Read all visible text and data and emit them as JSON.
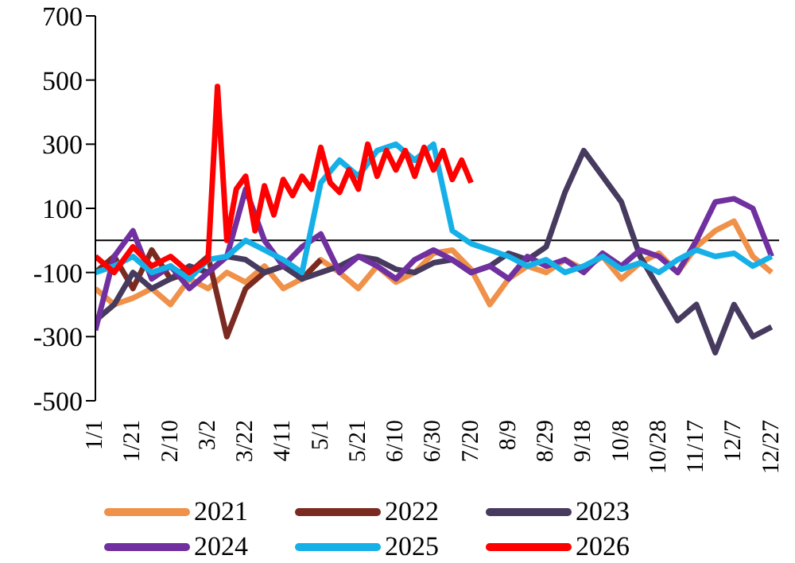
{
  "chart_data": {
    "type": "line",
    "x": [
      "--01-01",
      "--01-11",
      "--01-21",
      "--01-31",
      "--02-10",
      "--02-20",
      "--03-02",
      "--03-12",
      "--03-22",
      "--04-01",
      "--04-11",
      "--04-21",
      "--05-01",
      "--05-11",
      "--05-21",
      "--05-31",
      "--06-10",
      "--06-20",
      "--06-30",
      "--07-10",
      "--07-20",
      "--07-30",
      "--08-09",
      "--08-19",
      "--08-29",
      "--09-08",
      "--09-18",
      "--09-28",
      "--10-08",
      "--10-18",
      "--10-28",
      "--11-07",
      "--11-17",
      "--11-27",
      "--12-07",
      "--12-17",
      "--12-27"
    ],
    "series": [
      {
        "name": "2021",
        "color": "#f0914a",
        "values": [
          -150,
          -200,
          -180,
          -150,
          -200,
          -120,
          -150,
          -100,
          -130,
          -80,
          -150,
          -120,
          -60,
          -100,
          -150,
          -80,
          -130,
          -100,
          -40,
          -30,
          -90,
          -200,
          -120,
          -80,
          -100,
          -60,
          -90,
          -50,
          -120,
          -70,
          -40,
          -100,
          -20,
          30,
          60,
          -50,
          -100
        ]
      },
      {
        "name": "2022",
        "color": "#7b2a22",
        "values": [
          -100,
          -50,
          -150,
          -30,
          -120,
          -100,
          -50,
          -300,
          -150,
          -100,
          -80,
          -120,
          -60,
          null,
          null,
          null,
          null,
          null,
          null,
          null,
          null,
          null,
          null,
          null,
          null,
          null,
          null,
          null,
          null,
          null,
          null,
          null,
          null,
          null,
          null,
          null,
          null
        ]
      },
      {
        "name": "2023",
        "color": "#463a5e",
        "values": [
          -250,
          -200,
          -100,
          -150,
          -120,
          -80,
          -100,
          -50,
          -60,
          -100,
          -80,
          -120,
          -100,
          -80,
          -50,
          -60,
          -90,
          -100,
          -70,
          -60,
          -100,
          -80,
          -40,
          -60,
          -20,
          150,
          280,
          200,
          120,
          -50,
          -150,
          -250,
          -200,
          -350,
          -200,
          -300,
          -270
        ]
      },
      {
        "name": "2024",
        "color": "#7030a0",
        "values": [
          -280,
          -50,
          30,
          -120,
          -80,
          -150,
          -100,
          -50,
          160,
          0,
          -80,
          -20,
          20,
          -100,
          -50,
          -80,
          -120,
          -60,
          -30,
          -60,
          -100,
          -80,
          -120,
          -50,
          -80,
          -60,
          -100,
          -40,
          -80,
          -30,
          -50,
          -100,
          0,
          120,
          130,
          100,
          -50
        ]
      },
      {
        "name": "2025",
        "color": "#16b0e8",
        "values": [
          -100,
          -80,
          -50,
          -100,
          -80,
          -120,
          -60,
          -50,
          0,
          -30,
          -60,
          -100,
          180,
          250,
          200,
          280,
          300,
          250,
          300,
          30,
          -10,
          -30,
          -50,
          -80,
          -60,
          -100,
          -80,
          -50,
          -90,
          -70,
          -100,
          -60,
          -30,
          -50,
          -40,
          -80,
          -50
        ]
      },
      {
        "name": "2026",
        "color": "#ff0000",
        "x": [
          "--01-01",
          "--01-11",
          "--01-21",
          "--01-31",
          "--02-10",
          "--02-20",
          "--03-02",
          "--03-07",
          "--03-12",
          "--03-17",
          "--03-22",
          "--03-27",
          "--04-01",
          "--04-06",
          "--04-11",
          "--04-16",
          "--04-21",
          "--04-26",
          "--05-01",
          "--05-06",
          "--05-11",
          "--05-16",
          "--05-21",
          "--05-26",
          "--05-31",
          "--06-05",
          "--06-10",
          "--06-15",
          "--06-20",
          "--06-25",
          "--06-30",
          "--07-05",
          "--07-10",
          "--07-15",
          "--07-20"
        ],
        "values": [
          -50,
          -100,
          -20,
          -80,
          -50,
          -100,
          -60,
          480,
          0,
          160,
          200,
          30,
          170,
          80,
          190,
          140,
          200,
          160,
          290,
          180,
          150,
          220,
          160,
          300,
          200,
          280,
          220,
          280,
          200,
          290,
          220,
          280,
          190,
          250,
          180
        ]
      }
    ],
    "xlim": [
      "--01-01",
      "--12-31"
    ],
    "xticks": [
      {
        "value": "--01-01",
        "label": "1/1"
      },
      {
        "value": "--01-21",
        "label": "1/21"
      },
      {
        "value": "--02-10",
        "label": "2/10"
      },
      {
        "value": "--03-02",
        "label": "3/2"
      },
      {
        "value": "--03-22",
        "label": "3/22"
      },
      {
        "value": "--04-11",
        "label": "4/11"
      },
      {
        "value": "--05-01",
        "label": "5/1"
      },
      {
        "value": "--05-21",
        "label": "5/21"
      },
      {
        "value": "--06-10",
        "label": "6/10"
      },
      {
        "value": "--06-30",
        "label": "6/30"
      },
      {
        "value": "--07-20",
        "label": "7/20"
      },
      {
        "value": "--08-09",
        "label": "8/9"
      },
      {
        "value": "--08-29",
        "label": "8/29"
      },
      {
        "value": "--09-18",
        "label": "9/18"
      },
      {
        "value": "--10-08",
        "label": "10/8"
      },
      {
        "value": "--10-28",
        "label": "10/28"
      },
      {
        "value": "--11-17",
        "label": "11/17"
      },
      {
        "value": "--12-07",
        "label": "12/7"
      },
      {
        "value": "--12-27",
        "label": "12/27"
      }
    ],
    "ylim": [
      -500,
      700
    ],
    "yticks": [
      -500,
      -300,
      -100,
      100,
      300,
      500,
      700
    ],
    "ref_lines": [
      {
        "axis": "y",
        "value": 0,
        "color": "#000000"
      }
    ],
    "grid": false,
    "legend": "bottom"
  }
}
